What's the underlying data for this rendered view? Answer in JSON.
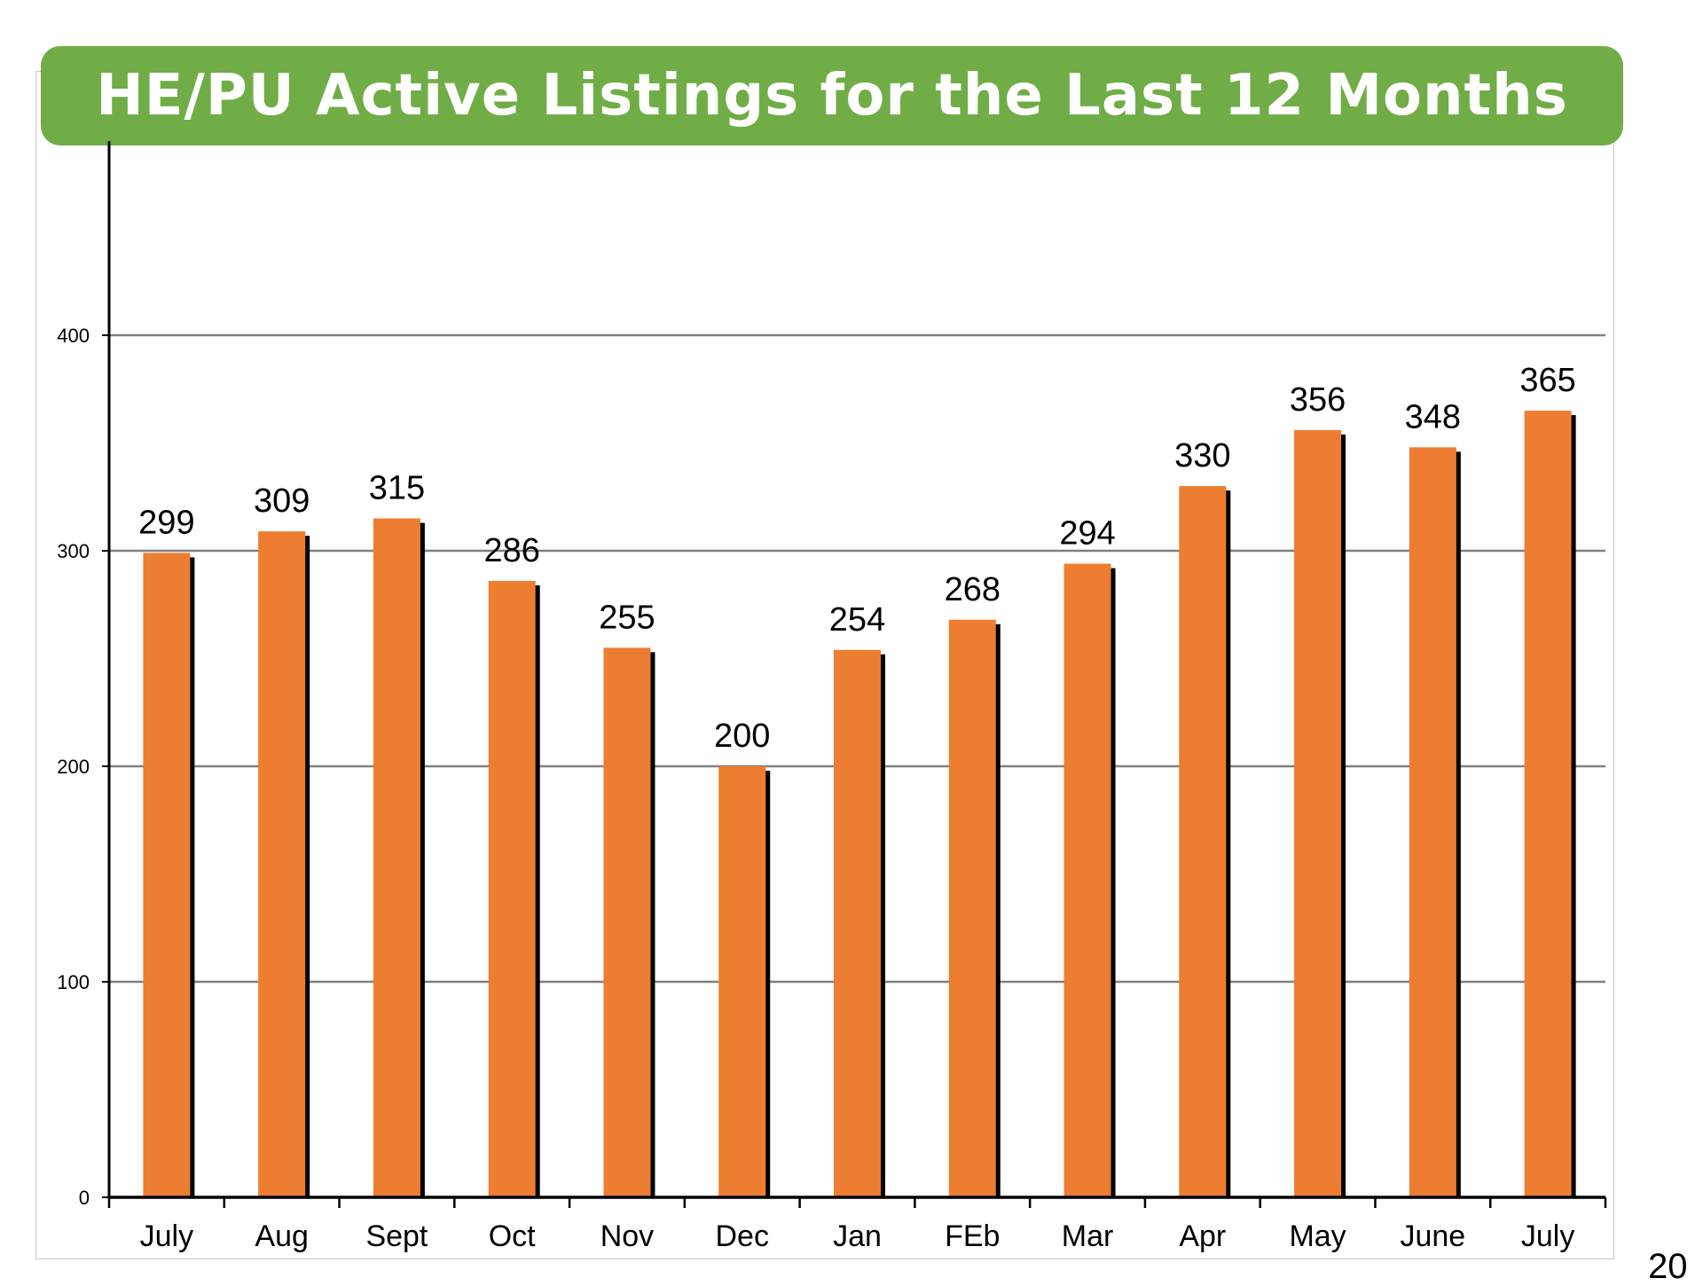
{
  "page_number": "20",
  "colors": {
    "title_banner": "#70ad47",
    "title_text": "#ffffff",
    "bar": "#ed7d31",
    "bar_shadow": "#000000",
    "gridline": "#808080",
    "axis": "#000000"
  },
  "chart_data": {
    "type": "bar",
    "title": "HE/PU Active Listings for the Last 12 Months",
    "xlabel": "",
    "ylabel": "",
    "categories": [
      "July",
      "Aug",
      "Sept",
      "Oct",
      "Nov",
      "Dec",
      "Jan",
      "FEb",
      "Mar",
      "Apr",
      "May",
      "June",
      "July"
    ],
    "series": [
      {
        "values": [
          299,
          309,
          315,
          286,
          255,
          200,
          254,
          268,
          294,
          330,
          356,
          348,
          365
        ]
      }
    ],
    "ylim": [
      0,
      490
    ],
    "yticks": [
      0,
      100,
      200,
      300,
      400
    ],
    "data_labels": true,
    "grid": true,
    "legend": "none"
  }
}
